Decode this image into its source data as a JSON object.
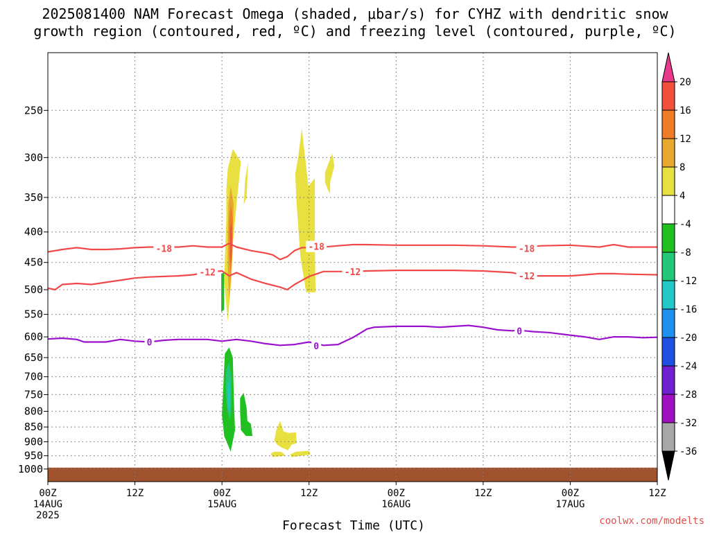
{
  "chart_data": {
    "type": "heatmap",
    "title_lines": [
      "2025081400 NAM Forecast Omega (shaded, μbar/s) for CYHZ with dendritic snow",
      "growth region (contoured, red, ºC) and freezing level (contoured, purple, ºC)"
    ],
    "xlabel": "Forecast Time (UTC)",
    "credit": "coolwx.com/modelts",
    "x_range_hours": [
      0,
      84
    ],
    "y_range_hpa": [
      200,
      1050
    ],
    "y_ticks": [
      250,
      300,
      350,
      400,
      450,
      500,
      550,
      600,
      650,
      700,
      750,
      800,
      850,
      900,
      950,
      1000
    ],
    "x_ticks": [
      {
        "h": 0,
        "label": "00Z",
        "sub": "14AUG",
        "sub2": "2025"
      },
      {
        "h": 12,
        "label": "12Z",
        "sub": "",
        "sub2": ""
      },
      {
        "h": 24,
        "label": "00Z",
        "sub": "15AUG",
        "sub2": ""
      },
      {
        "h": 36,
        "label": "12Z",
        "sub": "",
        "sub2": ""
      },
      {
        "h": 48,
        "label": "00Z",
        "sub": "16AUG",
        "sub2": ""
      },
      {
        "h": 60,
        "label": "12Z",
        "sub": "",
        "sub2": ""
      },
      {
        "h": 72,
        "label": "00Z",
        "sub": "17AUG",
        "sub2": ""
      },
      {
        "h": 84,
        "label": "12Z",
        "sub": "",
        "sub2": ""
      }
    ],
    "colorbar": {
      "labels": [
        "20",
        "16",
        "12",
        "8",
        "4",
        "-4",
        "-8",
        "-12",
        "-16",
        "-20",
        "-24",
        "-28",
        "-32",
        "-36"
      ],
      "colors": [
        "#e8398c",
        "#f0503c",
        "#f07c28",
        "#e8a830",
        "#e8e040",
        "#ffffff",
        "#20c020",
        "#20c878",
        "#20c8c8",
        "#2090f0",
        "#2050e0",
        "#7020d0",
        "#a010c0",
        "#a8a8a8",
        "#000000"
      ]
    },
    "contours": [
      {
        "name": "-18",
        "color": "#f04848",
        "label_positions": [
          [
            16,
            426
          ],
          [
            37,
            423
          ],
          [
            66,
            426
          ]
        ],
        "points": [
          [
            0,
            432
          ],
          [
            2,
            428
          ],
          [
            4,
            425
          ],
          [
            6,
            428
          ],
          [
            8,
            428
          ],
          [
            10,
            427
          ],
          [
            12,
            425
          ],
          [
            14,
            424
          ],
          [
            16,
            424
          ],
          [
            18,
            424
          ],
          [
            20,
            422
          ],
          [
            22,
            424
          ],
          [
            24,
            424
          ],
          [
            25,
            418
          ],
          [
            26,
            424
          ],
          [
            28,
            430
          ],
          [
            30,
            434
          ],
          [
            31,
            437
          ],
          [
            32,
            445
          ],
          [
            33,
            440
          ],
          [
            34,
            430
          ],
          [
            35,
            425
          ],
          [
            37,
            425
          ],
          [
            40,
            422
          ],
          [
            42,
            420
          ],
          [
            44,
            420
          ],
          [
            48,
            421
          ],
          [
            52,
            421
          ],
          [
            56,
            421
          ],
          [
            60,
            422
          ],
          [
            64,
            424
          ],
          [
            66,
            424
          ],
          [
            68,
            422
          ],
          [
            72,
            421
          ],
          [
            76,
            424
          ],
          [
            78,
            420
          ],
          [
            80,
            424
          ],
          [
            84,
            424
          ]
        ]
      },
      {
        "name": "-12",
        "color": "#f04848",
        "label_positions": [
          [
            22,
            467
          ],
          [
            42,
            466
          ],
          [
            66,
            474
          ]
        ],
        "points": [
          [
            0,
            497
          ],
          [
            1,
            500
          ],
          [
            2,
            490
          ],
          [
            4,
            488
          ],
          [
            6,
            490
          ],
          [
            8,
            486
          ],
          [
            10,
            482
          ],
          [
            12,
            478
          ],
          [
            14,
            476
          ],
          [
            16,
            475
          ],
          [
            18,
            474
          ],
          [
            20,
            472
          ],
          [
            22,
            467
          ],
          [
            24,
            465
          ],
          [
            25,
            474
          ],
          [
            26,
            468
          ],
          [
            28,
            480
          ],
          [
            30,
            488
          ],
          [
            32,
            495
          ],
          [
            33,
            500
          ],
          [
            34,
            490
          ],
          [
            36,
            475
          ],
          [
            38,
            466
          ],
          [
            40,
            466
          ],
          [
            42,
            466
          ],
          [
            44,
            465
          ],
          [
            48,
            464
          ],
          [
            52,
            464
          ],
          [
            56,
            464
          ],
          [
            60,
            465
          ],
          [
            64,
            468
          ],
          [
            66,
            474
          ],
          [
            68,
            474
          ],
          [
            72,
            474
          ],
          [
            76,
            470
          ],
          [
            78,
            470
          ],
          [
            80,
            471
          ],
          [
            84,
            472
          ]
        ]
      },
      {
        "name": "0",
        "color": "#9a10cc",
        "label_positions": [
          [
            14,
            612
          ],
          [
            37,
            621
          ],
          [
            65,
            586
          ]
        ],
        "points": [
          [
            0,
            605
          ],
          [
            2,
            603
          ],
          [
            4,
            606
          ],
          [
            5,
            612
          ],
          [
            8,
            612
          ],
          [
            10,
            606
          ],
          [
            12,
            610
          ],
          [
            14,
            612
          ],
          [
            16,
            608
          ],
          [
            18,
            606
          ],
          [
            20,
            606
          ],
          [
            22,
            606
          ],
          [
            24,
            610
          ],
          [
            26,
            606
          ],
          [
            28,
            610
          ],
          [
            30,
            616
          ],
          [
            32,
            620
          ],
          [
            34,
            618
          ],
          [
            36,
            612
          ],
          [
            38,
            620
          ],
          [
            40,
            618
          ],
          [
            42,
            602
          ],
          [
            43,
            592
          ],
          [
            44,
            582
          ],
          [
            45,
            578
          ],
          [
            48,
            576
          ],
          [
            52,
            576
          ],
          [
            54,
            578
          ],
          [
            56,
            576
          ],
          [
            58,
            574
          ],
          [
            60,
            578
          ],
          [
            62,
            584
          ],
          [
            64,
            586
          ],
          [
            65,
            585
          ],
          [
            67,
            588
          ],
          [
            69,
            590
          ],
          [
            72,
            596
          ],
          [
            74,
            600
          ],
          [
            76,
            606
          ],
          [
            78,
            600
          ],
          [
            80,
            600
          ],
          [
            82,
            602
          ],
          [
            84,
            601
          ]
        ]
      }
    ],
    "shaded_regions": [
      {
        "color": "#e8e040",
        "points": [
          [
            24.8,
            313
          ],
          [
            25.5,
            290
          ],
          [
            26.6,
            305
          ],
          [
            26.0,
            360
          ],
          [
            25.5,
            420
          ],
          [
            25.3,
            480
          ],
          [
            24.8,
            565
          ],
          [
            24.3,
            480
          ],
          [
            24.6,
            380
          ],
          [
            24.6,
            340
          ]
        ]
      },
      {
        "color": "#e8a830",
        "points": [
          [
            24.9,
            358
          ],
          [
            25.2,
            335
          ],
          [
            25.6,
            358
          ],
          [
            25.5,
            420
          ],
          [
            25.3,
            470
          ],
          [
            25.0,
            520
          ],
          [
            24.8,
            470
          ],
          [
            24.8,
            400
          ]
        ]
      },
      {
        "color": "#f07c28",
        "points": [
          [
            25.0,
            380
          ],
          [
            25.25,
            360
          ],
          [
            25.5,
            380
          ],
          [
            25.4,
            430
          ],
          [
            25.2,
            470
          ],
          [
            25.0,
            440
          ]
        ]
      },
      {
        "color": "#f0503c",
        "points": [
          [
            25.1,
            395
          ],
          [
            25.3,
            385
          ],
          [
            25.4,
            410
          ],
          [
            25.3,
            450
          ],
          [
            25.15,
            440
          ]
        ]
      },
      {
        "color": "#e8e040",
        "points": [
          [
            34.5,
            300
          ],
          [
            35.0,
            268
          ],
          [
            35.6,
            310
          ],
          [
            35.9,
            335
          ],
          [
            36.8,
            325
          ],
          [
            36.8,
            420
          ],
          [
            36.9,
            505
          ],
          [
            35.6,
            505
          ],
          [
            34.8,
            440
          ],
          [
            34.3,
            360
          ],
          [
            34.1,
            320
          ]
        ]
      },
      {
        "color": "#e8e040",
        "points": [
          [
            38.2,
            318
          ],
          [
            39.2,
            295
          ],
          [
            39.5,
            310
          ],
          [
            38.9,
            330
          ],
          [
            38.9,
            345
          ],
          [
            38.6,
            340
          ],
          [
            38.2,
            330
          ]
        ]
      },
      {
        "color": "#e8e040",
        "points": [
          [
            27.2,
            326
          ],
          [
            27.6,
            305
          ],
          [
            27.4,
            350
          ],
          [
            27.0,
            360
          ]
        ]
      },
      {
        "color": "#20c020",
        "points": [
          [
            23.9,
            470
          ],
          [
            24.3,
            468
          ],
          [
            24.3,
            540
          ],
          [
            23.9,
            545
          ]
        ]
      },
      {
        "color": "#20c020",
        "points": [
          [
            24.4,
            640
          ],
          [
            25.0,
            625
          ],
          [
            25.5,
            650
          ],
          [
            25.6,
            730
          ],
          [
            25.7,
            800
          ],
          [
            25.8,
            860
          ],
          [
            25.2,
            935
          ],
          [
            24.3,
            880
          ],
          [
            24.0,
            810
          ],
          [
            24.2,
            720
          ]
        ]
      },
      {
        "color": "#20c878",
        "points": [
          [
            24.6,
            680
          ],
          [
            25.0,
            660
          ],
          [
            25.3,
            700
          ],
          [
            25.3,
            780
          ],
          [
            25.1,
            830
          ],
          [
            24.7,
            790
          ],
          [
            24.5,
            740
          ]
        ]
      },
      {
        "color": "#20c8c8",
        "points": [
          [
            24.8,
            720
          ],
          [
            25.0,
            710
          ],
          [
            25.1,
            760
          ],
          [
            25.0,
            800
          ],
          [
            24.8,
            780
          ]
        ]
      },
      {
        "color": "#20c020",
        "points": [
          [
            26.5,
            760
          ],
          [
            27.0,
            745
          ],
          [
            27.4,
            790
          ],
          [
            27.5,
            830
          ],
          [
            28.0,
            840
          ],
          [
            28.2,
            880
          ],
          [
            27.3,
            880
          ],
          [
            26.6,
            860
          ],
          [
            26.5,
            800
          ]
        ]
      },
      {
        "color": "#e8e040",
        "points": [
          [
            31.5,
            860
          ],
          [
            32.0,
            830
          ],
          [
            32.5,
            865
          ],
          [
            33.2,
            870
          ],
          [
            34.2,
            868
          ],
          [
            34.3,
            905
          ],
          [
            33.6,
            910
          ],
          [
            33.1,
            930
          ],
          [
            32.2,
            920
          ],
          [
            31.6,
            910
          ],
          [
            31.2,
            895
          ]
        ]
      },
      {
        "color": "#e8e040",
        "points": [
          [
            30.7,
            942
          ],
          [
            31.2,
            935
          ],
          [
            32.2,
            936
          ],
          [
            32.8,
            950
          ],
          [
            31.0,
            955
          ]
        ]
      },
      {
        "color": "#e8e040",
        "points": [
          [
            33.4,
            945
          ],
          [
            34.2,
            935
          ],
          [
            36.0,
            932
          ],
          [
            36.2,
            945
          ],
          [
            35.0,
            950
          ],
          [
            33.6,
            955
          ]
        ]
      }
    ],
    "surface": {
      "color": "#a0522d",
      "top_hpa": 1000
    }
  }
}
